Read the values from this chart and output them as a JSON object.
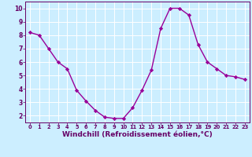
{
  "x": [
    0,
    1,
    2,
    3,
    4,
    5,
    6,
    7,
    8,
    9,
    10,
    11,
    12,
    13,
    14,
    15,
    16,
    17,
    18,
    19,
    20,
    21,
    22,
    23
  ],
  "y": [
    8.2,
    8.0,
    7.0,
    6.0,
    5.5,
    3.9,
    3.1,
    2.4,
    1.9,
    1.8,
    1.8,
    2.6,
    3.9,
    5.4,
    8.5,
    10.0,
    10.0,
    9.5,
    7.3,
    6.0,
    5.5,
    5.0,
    4.9,
    4.7
  ],
  "line_color": "#990099",
  "marker": "D",
  "marker_size": 2.2,
  "line_width": 1.0,
  "xlabel": "Windchill (Refroidissement éolien,°C)",
  "xlabel_fontsize": 6.5,
  "xlabel_color": "#660066",
  "tick_label_color": "#660066",
  "bg_color": "#cceeff",
  "grid_color": "#ffffff",
  "xlim": [
    -0.5,
    23.5
  ],
  "ylim": [
    1.5,
    10.5
  ],
  "yticks": [
    2,
    3,
    4,
    5,
    6,
    7,
    8,
    9,
    10
  ],
  "xticks": [
    0,
    1,
    2,
    3,
    4,
    5,
    6,
    7,
    8,
    9,
    10,
    11,
    12,
    13,
    14,
    15,
    16,
    17,
    18,
    19,
    20,
    21,
    22,
    23
  ]
}
